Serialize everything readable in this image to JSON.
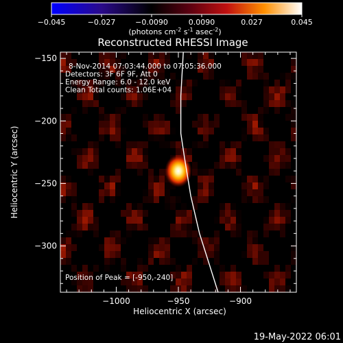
{
  "colorbar": {
    "ticks": [
      "-0.045",
      "-0.027",
      "-0.0090",
      "0.0090",
      "0.027",
      "0.045"
    ],
    "units_main": "(photons cm",
    "units_exp1": "-2",
    "units_mid": " s",
    "units_exp2": "-1",
    "units_end": " asec",
    "units_exp3": "-2",
    "units_close": ")",
    "range": [
      -0.045,
      0.045
    ]
  },
  "chart_data": {
    "type": "heatmap",
    "title": "Reconstructed RHESSI Image",
    "xlabel": "Heliocentric X (arcsec)",
    "ylabel": "Heliocentric Y (arcsec)",
    "xlim": [
      -1045,
      -855
    ],
    "ylim": [
      -337,
      -145
    ],
    "xticks": [
      -1000,
      -950,
      -900
    ],
    "yticks": [
      -150,
      -200,
      -250,
      -300
    ],
    "xtick_labels": [
      "−1000",
      "−950",
      "−900"
    ],
    "ytick_labels": [
      "−150",
      "−200",
      "−250",
      "−300"
    ],
    "peak": {
      "x": -950,
      "y": -240
    },
    "limb_curve": [
      [
        -946,
        -145
      ],
      [
        -948,
        -180
      ],
      [
        -948,
        -210
      ],
      [
        -945,
        -230
      ],
      [
        -940,
        -260
      ],
      [
        -933,
        -290
      ],
      [
        -925,
        -315
      ],
      [
        -918,
        -337
      ]
    ],
    "annotations": [
      "8-Nov-2014 07:03:44.000 to 07:05:36.000",
      "Detectors: 3F 6F 9F, Att 0",
      "Energy Range: 6.0 - 12.0 keV",
      "Clean    Total counts: 1.06E+04"
    ],
    "peak_label": "Position of Peak = [-950,-240]"
  },
  "footer": {
    "timestamp": "19-May-2022 06:01"
  }
}
